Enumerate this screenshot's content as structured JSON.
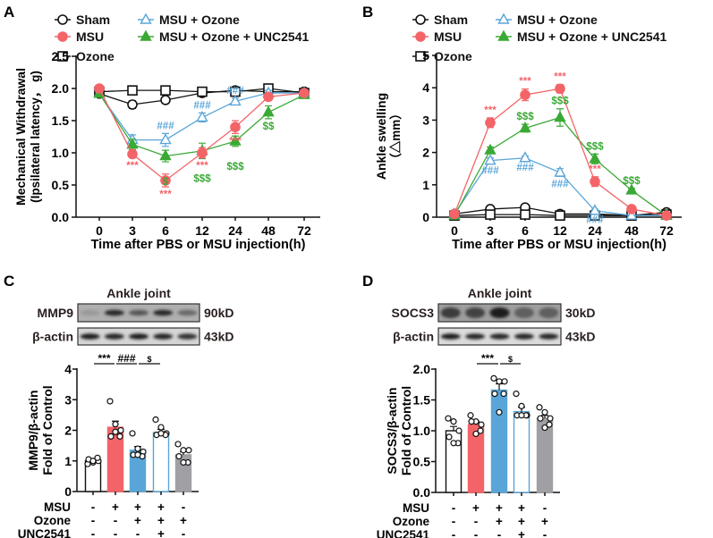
{
  "colors": {
    "sham": "#111111",
    "msu": "#f36468",
    "ozone": "#111111",
    "msu_ozone": "#5aa5d8",
    "msu_ozone_unc": "#3aa935",
    "gray": "#a0a0a4",
    "text": "#111111"
  },
  "legend": [
    {
      "key": "sham",
      "label": "Sham",
      "marker": "circle-open"
    },
    {
      "key": "msu",
      "label": "MSU",
      "marker": "circle-filled"
    },
    {
      "key": "ozone",
      "label": "Ozone",
      "marker": "square-open"
    },
    {
      "key": "msu_ozone",
      "label": "MSU + Ozone",
      "marker": "triangle-open"
    },
    {
      "key": "msu_ozone_unc",
      "label": "MSU + Ozone + UNC2541",
      "marker": "triangle-filled"
    }
  ],
  "chart_data": [
    {
      "panel": "A",
      "type": "line",
      "ylabel_line1": "Mechanical Withdrawal",
      "ylabel_line2": "(Ipsilateral latency， g)",
      "xlabel": "Time after PBS or MSU injection(h)",
      "categories": [
        "0",
        "3",
        "6",
        "12",
        "24",
        "48",
        "72"
      ],
      "ylim": [
        0,
        2.5
      ],
      "yticks": [
        "0.0",
        "0.5",
        "1.0",
        "1.5",
        "2.0",
        "2.5"
      ],
      "ytick_values": [
        0,
        0.5,
        1,
        1.5,
        2,
        2.5
      ],
      "series": [
        {
          "key": "sham",
          "values": [
            1.92,
            1.75,
            1.82,
            1.93,
            1.97,
            1.95,
            1.95
          ],
          "err": [
            0.03,
            0.06,
            0.05,
            0.03,
            0.03,
            0.03,
            0.02
          ]
        },
        {
          "key": "ozone",
          "values": [
            1.95,
            1.97,
            1.97,
            1.95,
            1.95,
            2.0,
            1.93
          ],
          "err": [
            0.02,
            0.03,
            0.03,
            0.03,
            0.03,
            0.03,
            0.02
          ]
        },
        {
          "key": "msu_ozone",
          "values": [
            1.92,
            1.2,
            1.2,
            1.55,
            1.8,
            1.93,
            1.93
          ],
          "err": [
            0.03,
            0.08,
            0.1,
            0.07,
            0.05,
            0.04,
            0.03
          ]
        },
        {
          "key": "msu_ozone_unc",
          "values": [
            1.92,
            1.13,
            0.95,
            1.03,
            1.18,
            1.63,
            1.9
          ],
          "err": [
            0.03,
            0.08,
            0.09,
            0.12,
            0.08,
            0.1,
            0.03
          ]
        },
        {
          "key": "msu",
          "values": [
            2.0,
            0.98,
            0.57,
            1.0,
            1.4,
            1.87,
            1.93
          ],
          "err": [
            0.02,
            0.06,
            0.1,
            0.08,
            0.1,
            0.05,
            0.03
          ]
        }
      ],
      "annotations": [
        {
          "key": "msu",
          "x": 1,
          "text": "***",
          "pos": "below",
          "row": 1
        },
        {
          "key": "msu_ozone",
          "x": 2,
          "text": "###",
          "pos": "above",
          "row": 1
        },
        {
          "key": "msu",
          "x": 2,
          "text": "***",
          "pos": "below",
          "row": 1
        },
        {
          "key": "msu_ozone_unc",
          "x": 2,
          "text": "$",
          "pos": "below",
          "row": 2
        },
        {
          "key": "msu_ozone",
          "x": 3,
          "text": "###",
          "pos": "above",
          "row": 1
        },
        {
          "key": "msu",
          "x": 3,
          "text": "***",
          "pos": "below",
          "row": 1
        },
        {
          "key": "msu_ozone_unc",
          "x": 3,
          "text": "$$$",
          "pos": "below",
          "row": 2
        },
        {
          "key": "msu_ozone",
          "x": 4,
          "text": "###",
          "pos": "above",
          "row": 1
        },
        {
          "key": "msu",
          "x": 4,
          "text": "***",
          "pos": "below",
          "row": 1
        },
        {
          "key": "msu_ozone_unc",
          "x": 4,
          "text": "$$$",
          "pos": "below",
          "row": 2
        },
        {
          "key": "msu_ozone_unc",
          "x": 5,
          "text": "$$",
          "pos": "below",
          "row": 1
        }
      ]
    },
    {
      "panel": "B",
      "type": "line",
      "ylabel_line1": "Ankle swelling",
      "ylabel_line2": "（△mm）",
      "xlabel": "Time after PBS or MSU injection(h)",
      "categories": [
        "0",
        "3",
        "6",
        "12",
        "24",
        "48",
        "72"
      ],
      "ylim": [
        0,
        5
      ],
      "yticks": [
        "0",
        "1",
        "2",
        "3",
        "4",
        "5"
      ],
      "ytick_values": [
        0,
        1,
        2,
        3,
        4,
        5
      ],
      "series": [
        {
          "key": "sham",
          "values": [
            0.1,
            0.25,
            0.3,
            0.1,
            0.1,
            0.05,
            0.15
          ],
          "err": [
            0.03,
            0.05,
            0.05,
            0.03,
            0.03,
            0.02,
            0.03
          ]
        },
        {
          "key": "ozone",
          "values": [
            0.05,
            0.08,
            0.08,
            0.05,
            0.05,
            0.05,
            0.08
          ],
          "err": [
            0.02,
            0.02,
            0.02,
            0.02,
            0.02,
            0.02,
            0.02
          ]
        },
        {
          "key": "msu_ozone",
          "values": [
            0.1,
            1.75,
            1.83,
            1.38,
            0.2,
            0.05,
            0.05
          ],
          "err": [
            0.03,
            0.08,
            0.06,
            0.12,
            0.05,
            0.02,
            0.02
          ]
        },
        {
          "key": "msu_ozone_unc",
          "values": [
            0.05,
            2.07,
            2.75,
            3.08,
            1.8,
            0.83,
            0.05
          ],
          "err": [
            0.03,
            0.1,
            0.12,
            0.27,
            0.15,
            0.06,
            0.02
          ]
        },
        {
          "key": "msu",
          "values": [
            0.1,
            2.92,
            3.78,
            3.97,
            1.1,
            0.25,
            0.05
          ],
          "err": [
            0.03,
            0.15,
            0.18,
            0.13,
            0.15,
            0.04,
            0.02
          ]
        }
      ],
      "annotations": [
        {
          "key": "msu",
          "x": 1,
          "text": "***",
          "pos": "above",
          "row": 1
        },
        {
          "key": "msu_ozone",
          "x": 1,
          "text": "###",
          "pos": "below",
          "row": 1
        },
        {
          "key": "msu",
          "x": 2,
          "text": "***",
          "pos": "above",
          "row": 1
        },
        {
          "key": "msu_ozone_unc",
          "x": 2,
          "text": "$$$",
          "pos": "above",
          "row": 1
        },
        {
          "key": "msu_ozone",
          "x": 2,
          "text": "###",
          "pos": "below",
          "row": 1
        },
        {
          "key": "msu",
          "x": 3,
          "text": "***",
          "pos": "above",
          "row": 1
        },
        {
          "key": "msu_ozone_unc",
          "x": 3,
          "text": "$$$",
          "pos": "above",
          "row": 1
        },
        {
          "key": "msu_ozone",
          "x": 3,
          "text": "###",
          "pos": "below",
          "row": 1
        },
        {
          "key": "msu",
          "x": 4,
          "text": "***",
          "pos": "above",
          "row": 1
        },
        {
          "key": "msu_ozone_unc",
          "x": 4,
          "text": "$$$",
          "pos": "above",
          "row": 1
        },
        {
          "key": "msu_ozone",
          "x": 4,
          "text": "###",
          "pos": "below",
          "row": 1
        },
        {
          "key": "msu_ozone_unc",
          "x": 5,
          "text": "$$$",
          "pos": "above",
          "row": 1
        }
      ]
    },
    {
      "panel": "C",
      "type": "bar",
      "blot_title": "Ankle joint",
      "blots": [
        {
          "label": "MMP9",
          "size": "90kD",
          "intensity": [
            0.25,
            0.85,
            0.6,
            0.85,
            0.5
          ],
          "bg": 0.55
        },
        {
          "label": "β-actin",
          "size": "43kD",
          "intensity": [
            0.9,
            0.85,
            0.9,
            0.85,
            0.8
          ],
          "bg": 0.2
        }
      ],
      "ylabel_line1": "MMP9/β-actin",
      "ylabel_line2": "Fold of Control",
      "ylim": [
        0,
        4
      ],
      "yticks": [
        "0",
        "1",
        "2",
        "3",
        "4"
      ],
      "ytick_values": [
        0,
        1,
        2,
        3,
        4
      ],
      "bars": [
        {
          "style": "white",
          "value": 1.0,
          "sem": 0.05,
          "points": [
            0.9,
            0.95,
            1.0,
            1.05,
            1.1,
            1.0
          ]
        },
        {
          "style": "msu",
          "value": 2.1,
          "sem": 0.2,
          "points": [
            2.95,
            2.2,
            2.0,
            1.8,
            1.8,
            1.95
          ]
        },
        {
          "style": "msu_ozone",
          "value": 1.35,
          "sem": 0.12,
          "points": [
            1.9,
            1.4,
            1.3,
            1.2,
            1.15,
            1.2
          ]
        },
        {
          "style": "outline_blue",
          "value": 1.93,
          "sem": 0.1,
          "points": [
            2.35,
            2.1,
            1.9,
            1.85,
            1.85,
            1.9
          ]
        },
        {
          "style": "gray",
          "value": 1.2,
          "sem": 0.1,
          "points": [
            1.55,
            1.35,
            1.35,
            1.15,
            0.95,
            0.95
          ]
        }
      ],
      "brackets": [
        {
          "from": 0,
          "to": 1,
          "text": "***"
        },
        {
          "from": 1,
          "to": 2,
          "text": "###"
        },
        {
          "from": 2,
          "to": 3,
          "text": "$"
        }
      ],
      "treatments": [
        {
          "label": "MSU",
          "signs": [
            "-",
            "+",
            "+",
            "+",
            "-"
          ]
        },
        {
          "label": "Ozone",
          "signs": [
            "-",
            "-",
            "+",
            "+",
            "+"
          ]
        },
        {
          "label": "UNC2541",
          "signs": [
            "-",
            "-",
            "-",
            "+",
            "-"
          ]
        }
      ]
    },
    {
      "panel": "D",
      "type": "bar",
      "blot_title": "Ankle joint",
      "blots": [
        {
          "label": "SOCS3",
          "size": "30kD",
          "intensity": [
            0.75,
            0.7,
            0.9,
            0.55,
            0.55
          ],
          "bg": 0.7
        },
        {
          "label": "β-actin",
          "size": "43kD",
          "intensity": [
            0.9,
            0.85,
            0.85,
            0.85,
            0.85
          ],
          "bg": 0.15
        }
      ],
      "ylabel_line1": "SOCS3/β-actin",
      "ylabel_line2": "Fold of Control",
      "ylim": [
        0,
        2
      ],
      "yticks": [
        "0.0",
        "0.5",
        "1.0",
        "1.5",
        "2.0"
      ],
      "ytick_values": [
        0,
        0.5,
        1,
        1.5,
        2
      ],
      "bars": [
        {
          "style": "white",
          "value": 1.0,
          "sem": 0.07,
          "points": [
            1.2,
            1.15,
            1.0,
            0.9,
            0.8,
            0.8
          ]
        },
        {
          "style": "msu",
          "value": 1.1,
          "sem": 0.05,
          "points": [
            1.25,
            1.15,
            1.1,
            1.15,
            1.0,
            0.95
          ]
        },
        {
          "style": "msu_ozone",
          "value": 1.66,
          "sem": 0.1,
          "points": [
            1.85,
            1.8,
            1.8,
            1.6,
            1.6,
            1.3
          ]
        },
        {
          "style": "outline_blue",
          "value": 1.31,
          "sem": 0.07,
          "points": [
            1.6,
            1.4,
            1.25,
            1.25,
            1.25,
            1.25
          ]
        },
        {
          "style": "gray",
          "value": 1.2,
          "sem": 0.05,
          "points": [
            1.38,
            1.3,
            1.2,
            1.2,
            1.1,
            1.05
          ]
        }
      ],
      "brackets": [
        {
          "from": 1,
          "to": 2,
          "text": "***"
        },
        {
          "from": 2,
          "to": 3,
          "text": "$"
        }
      ],
      "treatments": [
        {
          "label": "MSU",
          "signs": [
            "-",
            "+",
            "+",
            "+",
            "-"
          ]
        },
        {
          "label": "Ozone",
          "signs": [
            "-",
            "-",
            "+",
            "+",
            "+"
          ]
        },
        {
          "label": "UNC2541",
          "signs": [
            "-",
            "-",
            "-",
            "+",
            "-"
          ]
        }
      ]
    }
  ]
}
